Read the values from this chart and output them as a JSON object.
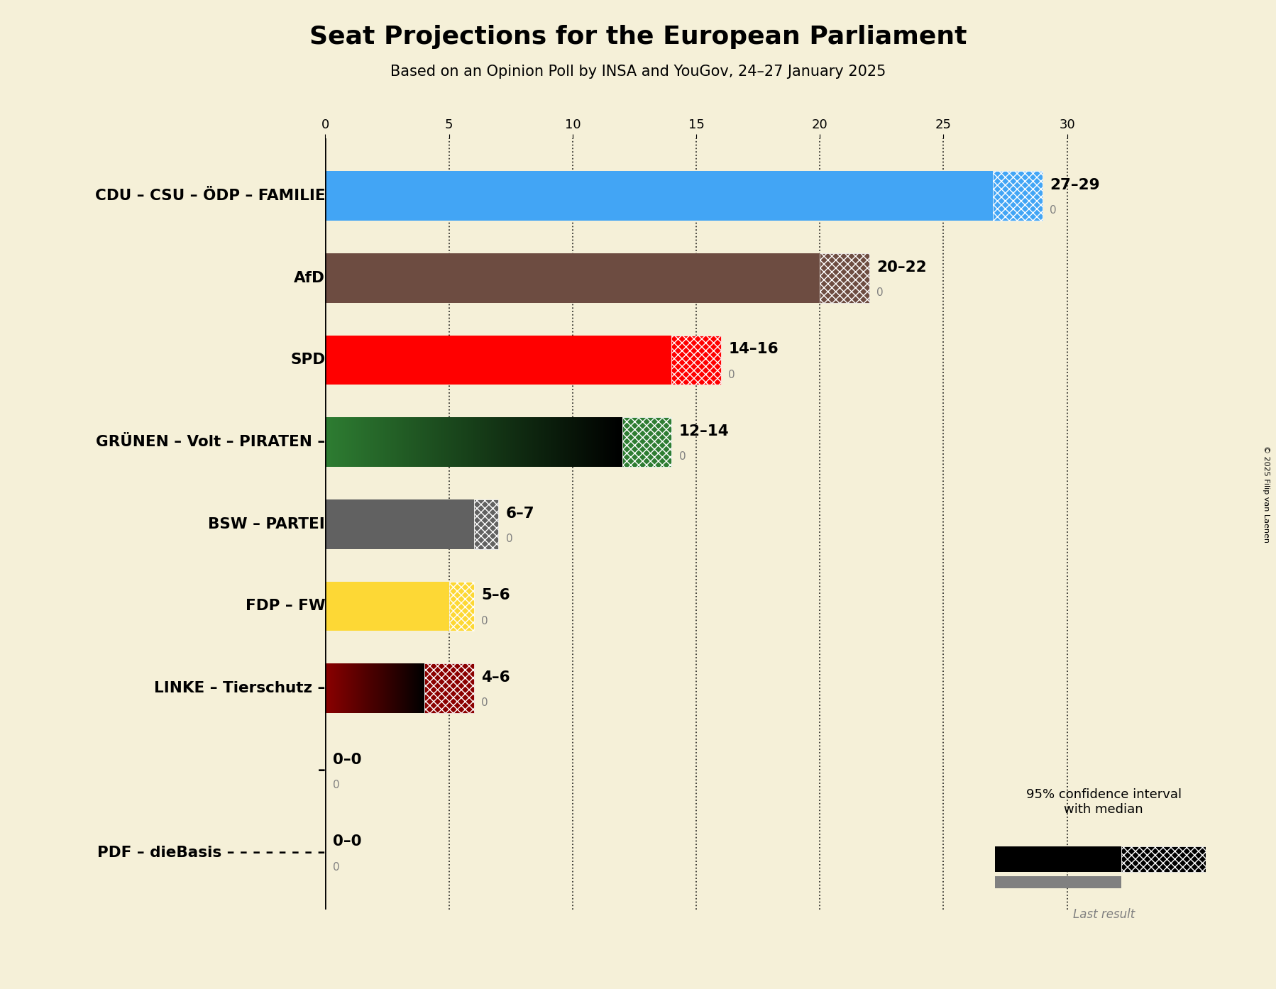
{
  "title": "Seat Projections for the European Parliament",
  "subtitle": "Based on an Opinion Poll by INSA and YouGov, 24–27 January 2025",
  "copyright": "© 2025 Filip van Laenen",
  "background_color": "#f5f0d8",
  "parties": [
    "CDU – CSU – ÖDP – FAMILIE",
    "AfD",
    "SPD",
    "GRÜNEN – Volt – PIRATEN –",
    "BSW – PARTEI",
    "FDP – FW",
    "LINKE – Tierschutz –",
    "–",
    "PDF – dieBasis – – – – – – – –"
  ],
  "median_values": [
    27,
    20,
    14,
    12,
    6,
    5,
    4,
    0,
    0
  ],
  "high_values": [
    29,
    22,
    16,
    14,
    7,
    6,
    6,
    0,
    0
  ],
  "last_results": [
    0,
    0,
    0,
    0,
    0,
    0,
    0,
    0,
    0
  ],
  "labels": [
    "27–29",
    "20–22",
    "14–16",
    "12–14",
    "6–7",
    "5–6",
    "4–6",
    "0–0",
    "0–0"
  ],
  "colors": [
    "#42a5f5",
    "#6d4c41",
    "#ff0000",
    "#2e7d32",
    "#616161",
    "#fdd835",
    "#8b0000",
    "#000000",
    "#000000"
  ],
  "hatch_colors": [
    "#42a5f5",
    "#6d4c41",
    "#ff0000",
    "#2e7d32",
    "#616161",
    "#fdd835",
    "#8b0000",
    "#000000",
    "#000000"
  ],
  "special_gradient": [
    false,
    false,
    false,
    true,
    false,
    false,
    true,
    false,
    false
  ],
  "gradient_colors": [
    null,
    null,
    null,
    [
      "#2e7d32",
      "#000000"
    ],
    null,
    null,
    [
      "#8b0000",
      "#000000"
    ],
    null,
    null
  ],
  "xlim": [
    0,
    32
  ],
  "xticks": [
    0,
    5,
    10,
    15,
    20,
    25,
    30
  ],
  "dotted_lines": [
    5,
    10,
    15,
    20,
    25,
    30
  ],
  "legend_text": "95% confidence interval\nwith median",
  "legend_last": "Last result"
}
